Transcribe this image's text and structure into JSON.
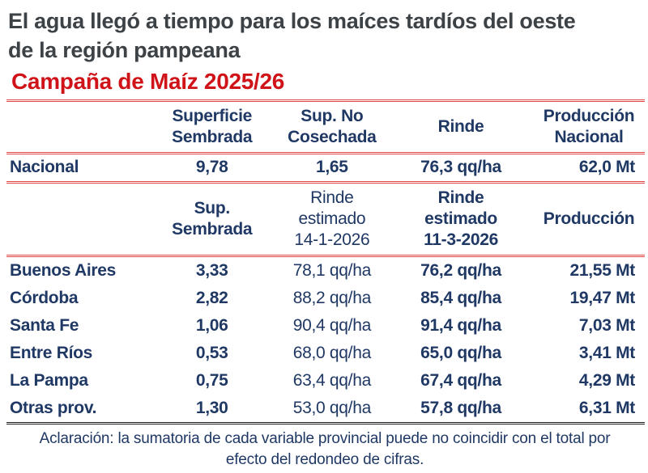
{
  "title": {
    "line1": "El agua llegó a tiempo para los maíces tardíos del oeste",
    "line2": "de la región pampeana"
  },
  "subtitle": "Campaña de Maíz 2025/26",
  "colors": {
    "accent_red": "#cf1318",
    "rule_red": "#e04446",
    "text_navy": "#1f3864",
    "title_gray": "#3d4247",
    "rule_dark": "#1c1c1c"
  },
  "national_table": {
    "headers": {
      "col1": [
        "Superficie",
        "Sembrada"
      ],
      "col2": [
        "Sup. No",
        "Cosechada"
      ],
      "col3": [
        "Rinde"
      ],
      "col4": [
        "Producción",
        "Nacional"
      ]
    },
    "row": {
      "label": "Nacional",
      "superficie_sembrada": "9,78",
      "sup_no_cosechada": "1,65",
      "rinde": "76,3 qq/ha",
      "produccion_nacional": "62,0 Mt"
    }
  },
  "province_table": {
    "headers": {
      "col1": [
        "Sup.",
        "Sembrada"
      ],
      "col2": [
        "Rinde",
        "estimado",
        "14-1-2026"
      ],
      "col3": [
        "Rinde",
        "estimado",
        "11-3-2026"
      ],
      "col4": [
        "Producción"
      ]
    },
    "rows": [
      {
        "label": "Buenos Aires",
        "sup_sembrada": "3,33",
        "rinde_estimado_ene": "78,1 qq/ha",
        "rinde_estimado_mar": "76,2 qq/ha",
        "produccion": "21,55 Mt"
      },
      {
        "label": "Córdoba",
        "sup_sembrada": "2,82",
        "rinde_estimado_ene": "88,2 qq/ha",
        "rinde_estimado_mar": "85,4 qq/ha",
        "produccion": "19,47 Mt"
      },
      {
        "label": "Santa Fe",
        "sup_sembrada": "1,06",
        "rinde_estimado_ene": "90,4 qq/ha",
        "rinde_estimado_mar": "91,4 qq/ha",
        "produccion": "7,03 Mt"
      },
      {
        "label": "Entre Ríos",
        "sup_sembrada": "0,53",
        "rinde_estimado_ene": "68,0 qq/ha",
        "rinde_estimado_mar": "65,0 qq/ha",
        "produccion": "3,41 Mt"
      },
      {
        "label": "La Pampa",
        "sup_sembrada": "0,75",
        "rinde_estimado_ene": "63,4 qq/ha",
        "rinde_estimado_mar": "67,4 qq/ha",
        "produccion": "4,29 Mt"
      },
      {
        "label": "Otras prov.",
        "sup_sembrada": "1,30",
        "rinde_estimado_ene": "53,0 qq/ha",
        "rinde_estimado_mar": "57,8 qq/ha",
        "produccion": "6,31 Mt"
      }
    ]
  },
  "footnote": {
    "line1": "Aclaración: la sumatoria de cada variable provincial puede no coincidir con el total por",
    "line2": "efecto del redondeo de cifras."
  }
}
